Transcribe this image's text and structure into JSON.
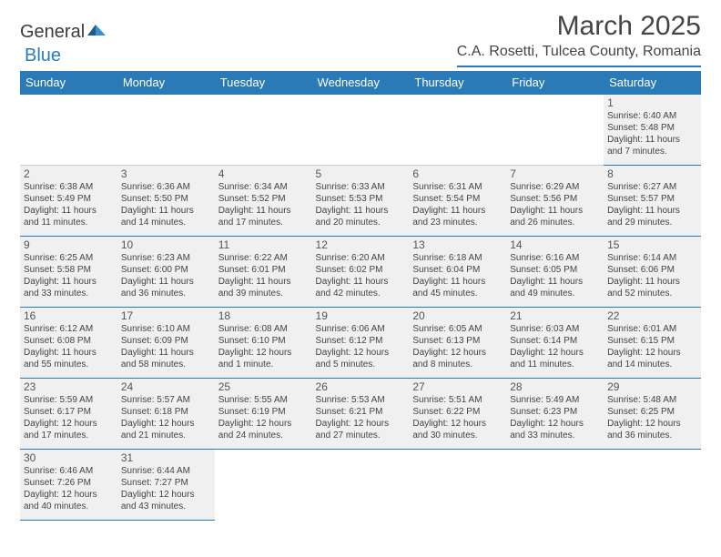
{
  "brand": {
    "part1": "General",
    "part2": "Blue"
  },
  "title": "March 2025",
  "location": "C.A. Rosetti, Tulcea County, Romania",
  "colors": {
    "header_bg": "#2a7ab8",
    "header_fg": "#ffffff",
    "cell_bg": "#f0f0f0",
    "rule": "#2a7ab8",
    "text": "#444444"
  },
  "weekdays": [
    "Sunday",
    "Monday",
    "Tuesday",
    "Wednesday",
    "Thursday",
    "Friday",
    "Saturday"
  ],
  "weeks": [
    [
      null,
      null,
      null,
      null,
      null,
      null,
      {
        "n": "1",
        "sr": "6:40 AM",
        "ss": "5:48 PM",
        "dl": "11 hours and 7 minutes."
      }
    ],
    [
      {
        "n": "2",
        "sr": "6:38 AM",
        "ss": "5:49 PM",
        "dl": "11 hours and 11 minutes."
      },
      {
        "n": "3",
        "sr": "6:36 AM",
        "ss": "5:50 PM",
        "dl": "11 hours and 14 minutes."
      },
      {
        "n": "4",
        "sr": "6:34 AM",
        "ss": "5:52 PM",
        "dl": "11 hours and 17 minutes."
      },
      {
        "n": "5",
        "sr": "6:33 AM",
        "ss": "5:53 PM",
        "dl": "11 hours and 20 minutes."
      },
      {
        "n": "6",
        "sr": "6:31 AM",
        "ss": "5:54 PM",
        "dl": "11 hours and 23 minutes."
      },
      {
        "n": "7",
        "sr": "6:29 AM",
        "ss": "5:56 PM",
        "dl": "11 hours and 26 minutes."
      },
      {
        "n": "8",
        "sr": "6:27 AM",
        "ss": "5:57 PM",
        "dl": "11 hours and 29 minutes."
      }
    ],
    [
      {
        "n": "9",
        "sr": "6:25 AM",
        "ss": "5:58 PM",
        "dl": "11 hours and 33 minutes."
      },
      {
        "n": "10",
        "sr": "6:23 AM",
        "ss": "6:00 PM",
        "dl": "11 hours and 36 minutes."
      },
      {
        "n": "11",
        "sr": "6:22 AM",
        "ss": "6:01 PM",
        "dl": "11 hours and 39 minutes."
      },
      {
        "n": "12",
        "sr": "6:20 AM",
        "ss": "6:02 PM",
        "dl": "11 hours and 42 minutes."
      },
      {
        "n": "13",
        "sr": "6:18 AM",
        "ss": "6:04 PM",
        "dl": "11 hours and 45 minutes."
      },
      {
        "n": "14",
        "sr": "6:16 AM",
        "ss": "6:05 PM",
        "dl": "11 hours and 49 minutes."
      },
      {
        "n": "15",
        "sr": "6:14 AM",
        "ss": "6:06 PM",
        "dl": "11 hours and 52 minutes."
      }
    ],
    [
      {
        "n": "16",
        "sr": "6:12 AM",
        "ss": "6:08 PM",
        "dl": "11 hours and 55 minutes."
      },
      {
        "n": "17",
        "sr": "6:10 AM",
        "ss": "6:09 PM",
        "dl": "11 hours and 58 minutes."
      },
      {
        "n": "18",
        "sr": "6:08 AM",
        "ss": "6:10 PM",
        "dl": "12 hours and 1 minute."
      },
      {
        "n": "19",
        "sr": "6:06 AM",
        "ss": "6:12 PM",
        "dl": "12 hours and 5 minutes."
      },
      {
        "n": "20",
        "sr": "6:05 AM",
        "ss": "6:13 PM",
        "dl": "12 hours and 8 minutes."
      },
      {
        "n": "21",
        "sr": "6:03 AM",
        "ss": "6:14 PM",
        "dl": "12 hours and 11 minutes."
      },
      {
        "n": "22",
        "sr": "6:01 AM",
        "ss": "6:15 PM",
        "dl": "12 hours and 14 minutes."
      }
    ],
    [
      {
        "n": "23",
        "sr": "5:59 AM",
        "ss": "6:17 PM",
        "dl": "12 hours and 17 minutes."
      },
      {
        "n": "24",
        "sr": "5:57 AM",
        "ss": "6:18 PM",
        "dl": "12 hours and 21 minutes."
      },
      {
        "n": "25",
        "sr": "5:55 AM",
        "ss": "6:19 PM",
        "dl": "12 hours and 24 minutes."
      },
      {
        "n": "26",
        "sr": "5:53 AM",
        "ss": "6:21 PM",
        "dl": "12 hours and 27 minutes."
      },
      {
        "n": "27",
        "sr": "5:51 AM",
        "ss": "6:22 PM",
        "dl": "12 hours and 30 minutes."
      },
      {
        "n": "28",
        "sr": "5:49 AM",
        "ss": "6:23 PM",
        "dl": "12 hours and 33 minutes."
      },
      {
        "n": "29",
        "sr": "5:48 AM",
        "ss": "6:25 PM",
        "dl": "12 hours and 36 minutes."
      }
    ],
    [
      {
        "n": "30",
        "sr": "6:46 AM",
        "ss": "7:26 PM",
        "dl": "12 hours and 40 minutes."
      },
      {
        "n": "31",
        "sr": "6:44 AM",
        "ss": "7:27 PM",
        "dl": "12 hours and 43 minutes."
      },
      null,
      null,
      null,
      null,
      null
    ]
  ],
  "labels": {
    "sunrise": "Sunrise:",
    "sunset": "Sunset:",
    "daylight": "Daylight:"
  }
}
